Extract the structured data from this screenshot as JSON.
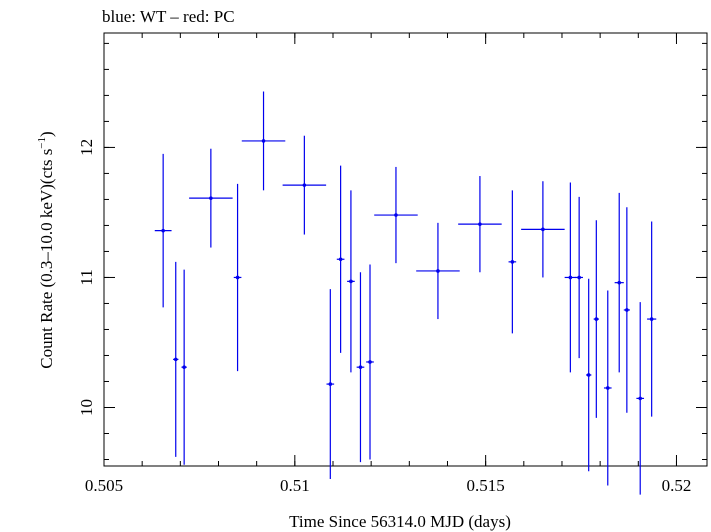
{
  "chart_data": {
    "type": "scatter",
    "title": "blue: WT – red: PC",
    "xlabel": "Time Since 56314.0 MJD (days)",
    "ylabel_main": "Count Rate (0.3–10.0 keV)(cts s",
    "ylabel_sup": "−1",
    "ylabel_close": ")",
    "xlim": [
      0.505,
      0.5208
    ],
    "ylim": [
      9.55,
      12.88
    ],
    "x_ticks": [
      {
        "value": 0.505,
        "label": "0.505"
      },
      {
        "value": 0.51,
        "label": "0.51"
      },
      {
        "value": 0.515,
        "label": "0.515"
      },
      {
        "value": 0.52,
        "label": "0.52"
      }
    ],
    "x_minor_step": 0.001,
    "y_ticks": [
      {
        "value": 10,
        "label": "10"
      },
      {
        "value": 11,
        "label": "11"
      },
      {
        "value": 12,
        "label": "12"
      }
    ],
    "y_minor_step": 0.2,
    "series": [
      {
        "color": "#0000ee",
        "points": [
          {
            "x": 0.50655,
            "xerr": 0.00022,
            "y": 11.36,
            "yerr": 0.59
          },
          {
            "x": 0.50688,
            "xerr": 7e-05,
            "y": 10.37,
            "yerr": 0.75
          },
          {
            "x": 0.5071,
            "xerr": 7e-05,
            "y": 10.31,
            "yerr": 0.75
          },
          {
            "x": 0.5078,
            "xerr": 0.00057,
            "y": 11.61,
            "yerr": 0.38
          },
          {
            "x": 0.5085,
            "xerr": 0.0001,
            "y": 11.0,
            "yerr": 0.72
          },
          {
            "x": 0.50918,
            "xerr": 0.00057,
            "y": 12.05,
            "yerr": 0.38
          },
          {
            "x": 0.51025,
            "xerr": 0.00057,
            "y": 11.71,
            "yerr": 0.38
          },
          {
            "x": 0.51093,
            "xerr": 0.0001,
            "y": 10.18,
            "yerr": 0.73
          },
          {
            "x": 0.5112,
            "xerr": 0.0001,
            "y": 11.14,
            "yerr": 0.72
          },
          {
            "x": 0.51147,
            "xerr": 0.0001,
            "y": 10.97,
            "yerr": 0.7
          },
          {
            "x": 0.51172,
            "xerr": 0.0001,
            "y": 10.31,
            "yerr": 0.73
          },
          {
            "x": 0.51197,
            "xerr": 0.0001,
            "y": 10.35,
            "yerr": 0.75
          },
          {
            "x": 0.51265,
            "xerr": 0.00057,
            "y": 11.48,
            "yerr": 0.37
          },
          {
            "x": 0.51375,
            "xerr": 0.00057,
            "y": 11.05,
            "yerr": 0.37
          },
          {
            "x": 0.51485,
            "xerr": 0.00057,
            "y": 11.41,
            "yerr": 0.37
          },
          {
            "x": 0.5157,
            "xerr": 0.0001,
            "y": 11.12,
            "yerr": 0.55
          },
          {
            "x": 0.5165,
            "xerr": 0.00057,
            "y": 11.37,
            "yerr": 0.37
          },
          {
            "x": 0.51722,
            "xerr": 0.00015,
            "y": 11.0,
            "yerr": 0.73
          },
          {
            "x": 0.51745,
            "xerr": 0.0001,
            "y": 11.0,
            "yerr": 0.62
          },
          {
            "x": 0.5177,
            "xerr": 7e-05,
            "y": 10.25,
            "yerr": 0.74
          },
          {
            "x": 0.5179,
            "xerr": 7e-05,
            "y": 10.68,
            "yerr": 0.76
          },
          {
            "x": 0.5182,
            "xerr": 0.0001,
            "y": 10.15,
            "yerr": 0.75
          },
          {
            "x": 0.5185,
            "xerr": 0.00012,
            "y": 10.96,
            "yerr": 0.69
          },
          {
            "x": 0.5187,
            "xerr": 8e-05,
            "y": 10.75,
            "yerr": 0.79
          },
          {
            "x": 0.51905,
            "xerr": 0.0001,
            "y": 10.07,
            "yerr": 0.74
          },
          {
            "x": 0.51935,
            "xerr": 0.00012,
            "y": 10.68,
            "yerr": 0.75
          }
        ]
      }
    ]
  }
}
